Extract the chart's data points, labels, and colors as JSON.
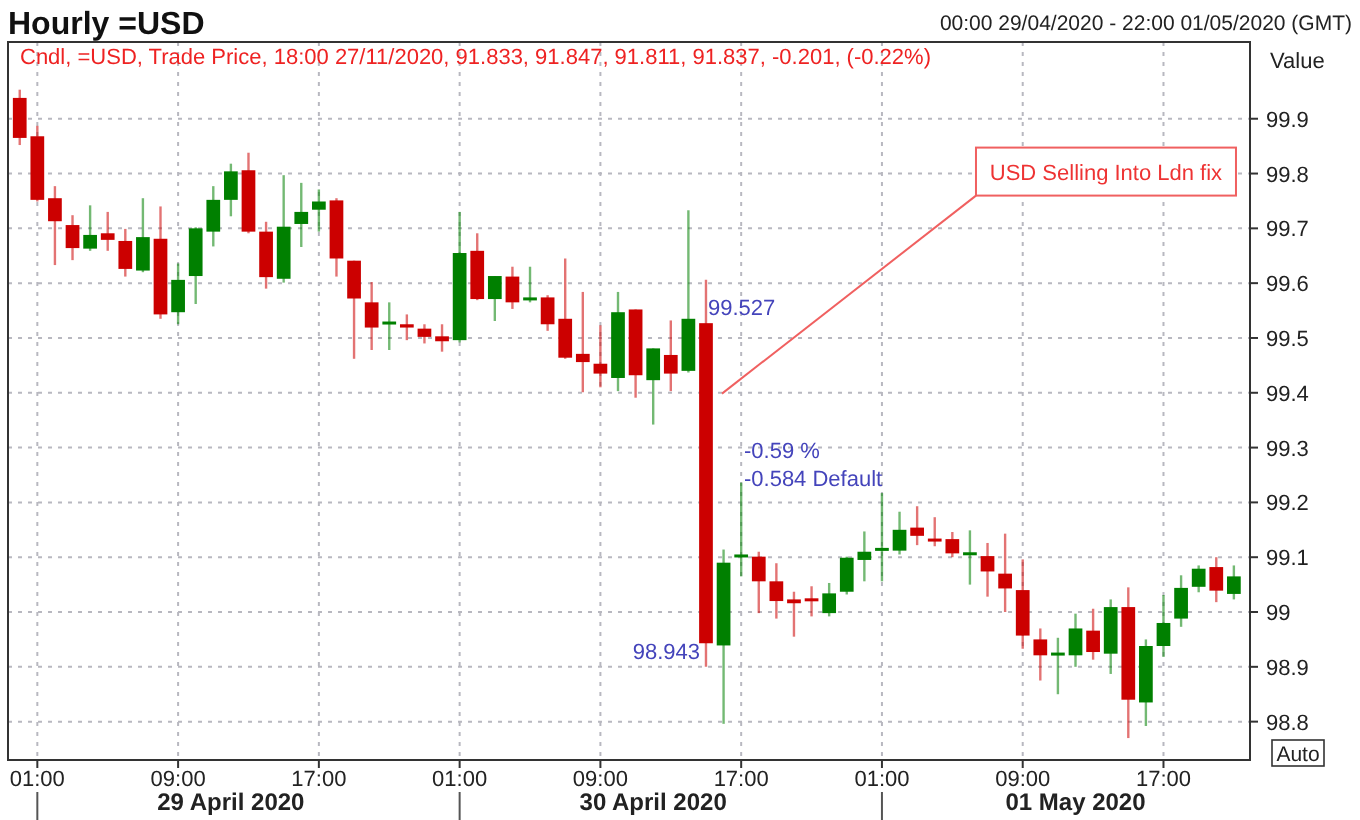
{
  "chart_data": {
    "type": "candlestick",
    "title": "Hourly =USD",
    "ylabel": "Value",
    "x": [
      "2020-04-29T00:00",
      "2020-04-29T01:00",
      "2020-04-29T02:00",
      "2020-04-29T03:00",
      "2020-04-29T04:00",
      "2020-04-29T05:00",
      "2020-04-29T06:00",
      "2020-04-29T07:00",
      "2020-04-29T08:00",
      "2020-04-29T09:00",
      "2020-04-29T10:00",
      "2020-04-29T11:00",
      "2020-04-29T12:00",
      "2020-04-29T13:00",
      "2020-04-29T14:00",
      "2020-04-29T15:00",
      "2020-04-29T16:00",
      "2020-04-29T17:00",
      "2020-04-29T18:00",
      "2020-04-29T19:00",
      "2020-04-29T20:00",
      "2020-04-29T21:00",
      "2020-04-29T22:00",
      "2020-04-29T23:00",
      "2020-04-30T00:00",
      "2020-04-30T01:00",
      "2020-04-30T02:00",
      "2020-04-30T03:00",
      "2020-04-30T04:00",
      "2020-04-30T05:00",
      "2020-04-30T06:00",
      "2020-04-30T07:00",
      "2020-04-30T08:00",
      "2020-04-30T09:00",
      "2020-04-30T10:00",
      "2020-04-30T11:00",
      "2020-04-30T12:00",
      "2020-04-30T13:00",
      "2020-04-30T14:00",
      "2020-04-30T15:00",
      "2020-04-30T16:00",
      "2020-04-30T17:00",
      "2020-04-30T18:00",
      "2020-04-30T19:00",
      "2020-04-30T20:00",
      "2020-04-30T21:00",
      "2020-04-30T22:00",
      "2020-04-30T23:00",
      "2020-05-01T00:00",
      "2020-05-01T01:00",
      "2020-05-01T02:00",
      "2020-05-01T03:00",
      "2020-05-01T04:00",
      "2020-05-01T05:00",
      "2020-05-01T06:00",
      "2020-05-01T07:00",
      "2020-05-01T08:00",
      "2020-05-01T09:00",
      "2020-05-01T10:00",
      "2020-05-01T11:00",
      "2020-05-01T12:00",
      "2020-05-01T13:00",
      "2020-05-01T14:00",
      "2020-05-01T15:00",
      "2020-05-01T16:00",
      "2020-05-01T17:00",
      "2020-05-01T18:00",
      "2020-05-01T19:00",
      "2020-05-01T20:00",
      "2020-05-01T21:00"
    ],
    "ohlc": [
      [
        99.938,
        99.953,
        99.852,
        99.865
      ],
      [
        99.868,
        99.887,
        99.749,
        99.752
      ],
      [
        99.755,
        99.777,
        99.633,
        99.713
      ],
      [
        99.706,
        99.724,
        99.642,
        99.664
      ],
      [
        99.663,
        99.742,
        99.659,
        99.688
      ],
      [
        99.691,
        99.73,
        99.659,
        99.679
      ],
      [
        99.677,
        99.699,
        99.612,
        99.626
      ],
      [
        99.623,
        99.755,
        99.62,
        99.684
      ],
      [
        99.681,
        99.74,
        99.535,
        99.543
      ],
      [
        99.547,
        99.636,
        99.525,
        99.606
      ],
      [
        99.613,
        99.702,
        99.562,
        99.7
      ],
      [
        99.694,
        99.777,
        99.667,
        99.752
      ],
      [
        99.752,
        99.818,
        99.722,
        99.804
      ],
      [
        99.806,
        99.838,
        99.691,
        99.694
      ],
      [
        99.694,
        99.712,
        99.59,
        99.611
      ],
      [
        99.608,
        99.797,
        99.601,
        99.703
      ],
      [
        99.708,
        99.783,
        99.666,
        99.73
      ],
      [
        99.734,
        99.771,
        99.694,
        99.749
      ],
      [
        99.751,
        99.755,
        99.612,
        99.645
      ],
      [
        99.641,
        99.641,
        99.462,
        99.572
      ],
      [
        99.565,
        99.602,
        99.478,
        99.519
      ],
      [
        99.525,
        99.565,
        99.478,
        99.53
      ],
      [
        99.525,
        99.543,
        99.496,
        99.519
      ],
      [
        99.517,
        99.525,
        99.49,
        99.502
      ],
      [
        99.503,
        99.525,
        99.475,
        99.494
      ],
      [
        99.496,
        99.73,
        99.492,
        99.655
      ],
      [
        99.659,
        99.691,
        99.569,
        99.571
      ],
      [
        99.571,
        99.613,
        99.531,
        99.613
      ],
      [
        99.612,
        99.63,
        99.553,
        99.565
      ],
      [
        99.569,
        99.63,
        99.565,
        99.574
      ],
      [
        99.574,
        99.578,
        99.513,
        99.525
      ],
      [
        99.535,
        99.645,
        99.462,
        99.464
      ],
      [
        99.471,
        99.584,
        99.401,
        99.456
      ],
      [
        99.453,
        99.523,
        99.41,
        99.435
      ],
      [
        99.427,
        99.584,
        99.403,
        99.547
      ],
      [
        99.552,
        99.552,
        99.391,
        99.432
      ],
      [
        99.423,
        99.481,
        99.342,
        99.481
      ],
      [
        99.469,
        99.532,
        99.403,
        99.435
      ],
      [
        99.44,
        99.733,
        99.437,
        99.535
      ],
      [
        99.527,
        99.606,
        98.9,
        98.943
      ],
      [
        98.939,
        99.114,
        98.796,
        99.09
      ],
      [
        99.1,
        99.236,
        99.065,
        99.105
      ],
      [
        99.101,
        99.11,
        98.998,
        99.056
      ],
      [
        99.056,
        99.089,
        98.988,
        99.02
      ],
      [
        99.023,
        99.037,
        98.955,
        99.016
      ],
      [
        99.025,
        99.047,
        98.992,
        99.02
      ],
      [
        98.998,
        99.053,
        98.992,
        99.034
      ],
      [
        99.037,
        99.101,
        99.032,
        99.099
      ],
      [
        99.095,
        99.147,
        99.056,
        99.11
      ],
      [
        99.112,
        99.217,
        99.056,
        99.117
      ],
      [
        99.112,
        99.183,
        99.105,
        99.15
      ],
      [
        99.154,
        99.193,
        99.122,
        99.139
      ],
      [
        99.134,
        99.173,
        99.12,
        99.129
      ],
      [
        99.133,
        99.146,
        99.1,
        99.107
      ],
      [
        99.104,
        99.149,
        99.05,
        99.109
      ],
      [
        99.102,
        99.126,
        99.028,
        99.074
      ],
      [
        99.07,
        99.143,
        99.0,
        99.043
      ],
      [
        99.04,
        99.096,
        98.933,
        98.957
      ],
      [
        98.95,
        98.97,
        98.875,
        98.921
      ],
      [
        98.921,
        98.953,
        98.85,
        98.926
      ],
      [
        98.921,
        98.997,
        98.9,
        98.97
      ],
      [
        98.966,
        99.006,
        98.913,
        98.927
      ],
      [
        98.924,
        99.023,
        98.887,
        99.009
      ],
      [
        99.009,
        99.045,
        98.77,
        98.84
      ],
      [
        98.835,
        98.95,
        98.792,
        98.938
      ],
      [
        98.938,
        99.031,
        98.918,
        98.98
      ],
      [
        98.988,
        99.067,
        98.973,
        99.044
      ],
      [
        99.046,
        99.085,
        99.036,
        99.079
      ],
      [
        99.082,
        99.1,
        99.018,
        99.039
      ],
      [
        99.033,
        99.085,
        99.023,
        99.065
      ]
    ],
    "colors": [
      "#cc0000",
      "#cc0000",
      "#cc0000",
      "#cc0000",
      "#008000",
      "#cc0000",
      "#cc0000",
      "#008000",
      "#cc0000",
      "#008000",
      "#008000",
      "#008000",
      "#008000",
      "#cc0000",
      "#cc0000",
      "#008000",
      "#008000",
      "#008000",
      "#cc0000",
      "#cc0000",
      "#cc0000",
      "#008000",
      "#cc0000",
      "#cc0000",
      "#cc0000",
      "#008000",
      "#cc0000",
      "#008000",
      "#cc0000",
      "#008000",
      "#cc0000",
      "#cc0000",
      "#cc0000",
      "#cc0000",
      "#008000",
      "#cc0000",
      "#008000",
      "#cc0000",
      "#008000",
      "#cc0000",
      "#008000",
      "#008000",
      "#cc0000",
      "#cc0000",
      "#cc0000",
      "#cc0000",
      "#008000",
      "#008000",
      "#008000",
      "#008000",
      "#008000",
      "#cc0000",
      "#cc0000",
      "#cc0000",
      "#008000",
      "#cc0000",
      "#cc0000",
      "#cc0000",
      "#cc0000",
      "#008000",
      "#008000",
      "#cc0000",
      "#008000",
      "#cc0000",
      "#008000",
      "#008000",
      "#008000",
      "#008000",
      "#cc0000",
      "#008000"
    ],
    "xlim": [
      "2020-04-28T23:20",
      "2020-05-01T21:55"
    ],
    "xticks": [
      {
        "value": "2020-04-29T01:00",
        "label": "01:00"
      },
      {
        "value": "2020-04-29T09:00",
        "label": "09:00"
      },
      {
        "value": "2020-04-29T17:00",
        "label": "17:00"
      },
      {
        "value": "2020-04-30T01:00",
        "label": "01:00"
      },
      {
        "value": "2020-04-30T09:00",
        "label": "09:00"
      },
      {
        "value": "2020-04-30T17:00",
        "label": "17:00"
      },
      {
        "value": "2020-05-01T01:00",
        "label": "01:00"
      },
      {
        "value": "2020-05-01T09:00",
        "label": "09:00"
      },
      {
        "value": "2020-05-01T17:00",
        "label": "17:00"
      }
    ],
    "ylim": [
      98.73,
      100.04
    ],
    "yticks": [
      98.8,
      98.9,
      99,
      99.1,
      99.2,
      99.3,
      99.4,
      99.5,
      99.6,
      99.7,
      99.8,
      99.9
    ],
    "grid": true,
    "annotations": [
      "Cndl, =USD, Trade Price, 18:00 27/11/2020, 91.833, 91.847, 91.811, 91.837, -0.201, (-0.22%)",
      "00:00 29/04/2020 - 22:00 01/05/2020 (GMT)",
      "USD Selling Into Ldn fix",
      {
        "text": "99.527",
        "x": "2020-04-30T15:00",
        "y": 99.527
      },
      {
        "text": "98.943",
        "x": "2020-04-30T15:00",
        "y": 98.943
      },
      "-0.59 %",
      "-0.584 Default",
      "29 April 2020",
      "30 April 2020",
      "01 May 2020",
      "Auto"
    ]
  }
}
